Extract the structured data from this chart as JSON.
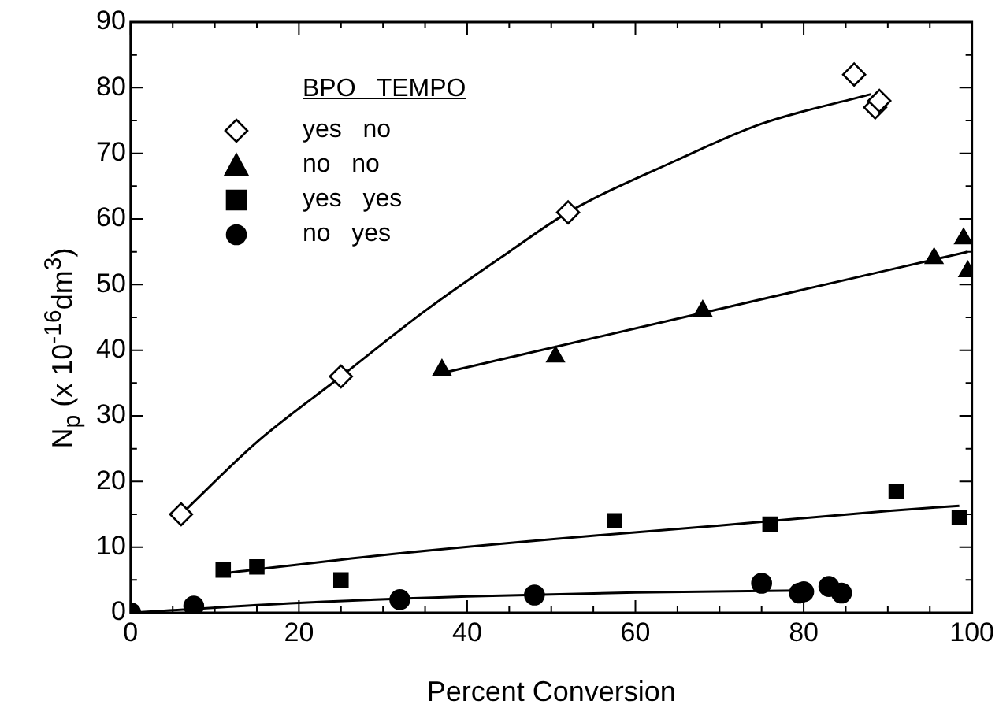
{
  "chart_data": {
    "type": "scatter",
    "xlabel": "Percent Conversion",
    "ylabel": "N$_{p}$ (x 10$^{-16}$dm$^{3}$)",
    "legend_title": "BPO   TEMPO",
    "legend": "top left",
    "grid": false,
    "xlim": [
      0,
      100
    ],
    "ylim": [
      0,
      90
    ],
    "xticks": [
      0,
      {
        "value": 5,
        "label": null
      },
      {
        "value": 10,
        "label": null
      },
      {
        "value": 15,
        "label": null
      },
      20,
      {
        "value": 25,
        "label": null
      },
      {
        "value": 30,
        "label": null
      },
      {
        "value": 35,
        "label": null
      },
      40,
      {
        "value": 45,
        "label": null
      },
      {
        "value": 50,
        "label": null
      },
      {
        "value": 55,
        "label": null
      },
      60,
      {
        "value": 65,
        "label": null
      },
      {
        "value": 70,
        "label": null
      },
      {
        "value": 75,
        "label": null
      },
      80,
      {
        "value": 85,
        "label": null
      },
      {
        "value": 90,
        "label": null
      },
      {
        "value": 95,
        "label": null
      },
      100
    ],
    "yticks": [
      0,
      {
        "value": 5,
        "label": null
      },
      10,
      {
        "value": 15,
        "label": null
      },
      20,
      {
        "value": 25,
        "label": null
      },
      30,
      {
        "value": 35,
        "label": null
      },
      40,
      {
        "value": 45,
        "label": null
      },
      50,
      {
        "value": 55,
        "label": null
      },
      60,
      {
        "value": 65,
        "label": null
      },
      70,
      {
        "value": 75,
        "label": null
      },
      80,
      {
        "value": 85,
        "label": null
      },
      90
    ],
    "series": [
      {
        "name": "yes   no",
        "color": "#000000",
        "marker": "diamond",
        "x": [
          6,
          25,
          52,
          86,
          88.5,
          89
        ],
        "values": [
          15,
          36,
          61,
          82,
          77,
          78
        ]
      },
      {
        "name": "no   no",
        "color": "#000000",
        "marker": "triangle",
        "x": [
          37,
          50.5,
          68,
          95.5,
          99,
          99.5
        ],
        "values": [
          37,
          39,
          46,
          54,
          57,
          52
        ]
      },
      {
        "name": "yes   yes",
        "color": "#000000",
        "marker": "square",
        "x": [
          11,
          15,
          25,
          57.5,
          76,
          91,
          98.5
        ],
        "values": [
          6.5,
          7,
          5,
          14,
          13.5,
          18.5,
          14.5
        ]
      },
      {
        "name": "no   yes",
        "color": "#000000",
        "marker": "circle",
        "x": [
          0,
          7.5,
          32,
          48,
          75,
          79.5,
          80,
          83,
          84.5
        ],
        "values": [
          0,
          1,
          2,
          2.7,
          4.5,
          3,
          3.2,
          4,
          3
        ]
      },
      {
        "type": "line",
        "color": "#000000",
        "marker": "none",
        "x": [
          6,
          15,
          25,
          35,
          45,
          52,
          65,
          75,
          88
        ],
        "values": [
          15,
          26,
          36,
          46,
          55,
          61,
          69,
          74.5,
          79
        ]
      },
      {
        "type": "line",
        "color": "#000000",
        "marker": "none",
        "x": [
          37,
          68,
          99.5
        ],
        "values": [
          36.5,
          45.7,
          55
        ]
      },
      {
        "type": "line",
        "color": "#000000",
        "marker": "none",
        "x": [
          11,
          30,
          50,
          70,
          90,
          98.5
        ],
        "values": [
          6,
          8.8,
          11.2,
          13.3,
          15.5,
          16.3
        ]
      },
      {
        "type": "line",
        "color": "#000000",
        "marker": "none",
        "x": [
          0,
          20,
          40,
          60,
          80
        ],
        "values": [
          0,
          1.5,
          2.5,
          3.1,
          3.4
        ]
      }
    ]
  }
}
